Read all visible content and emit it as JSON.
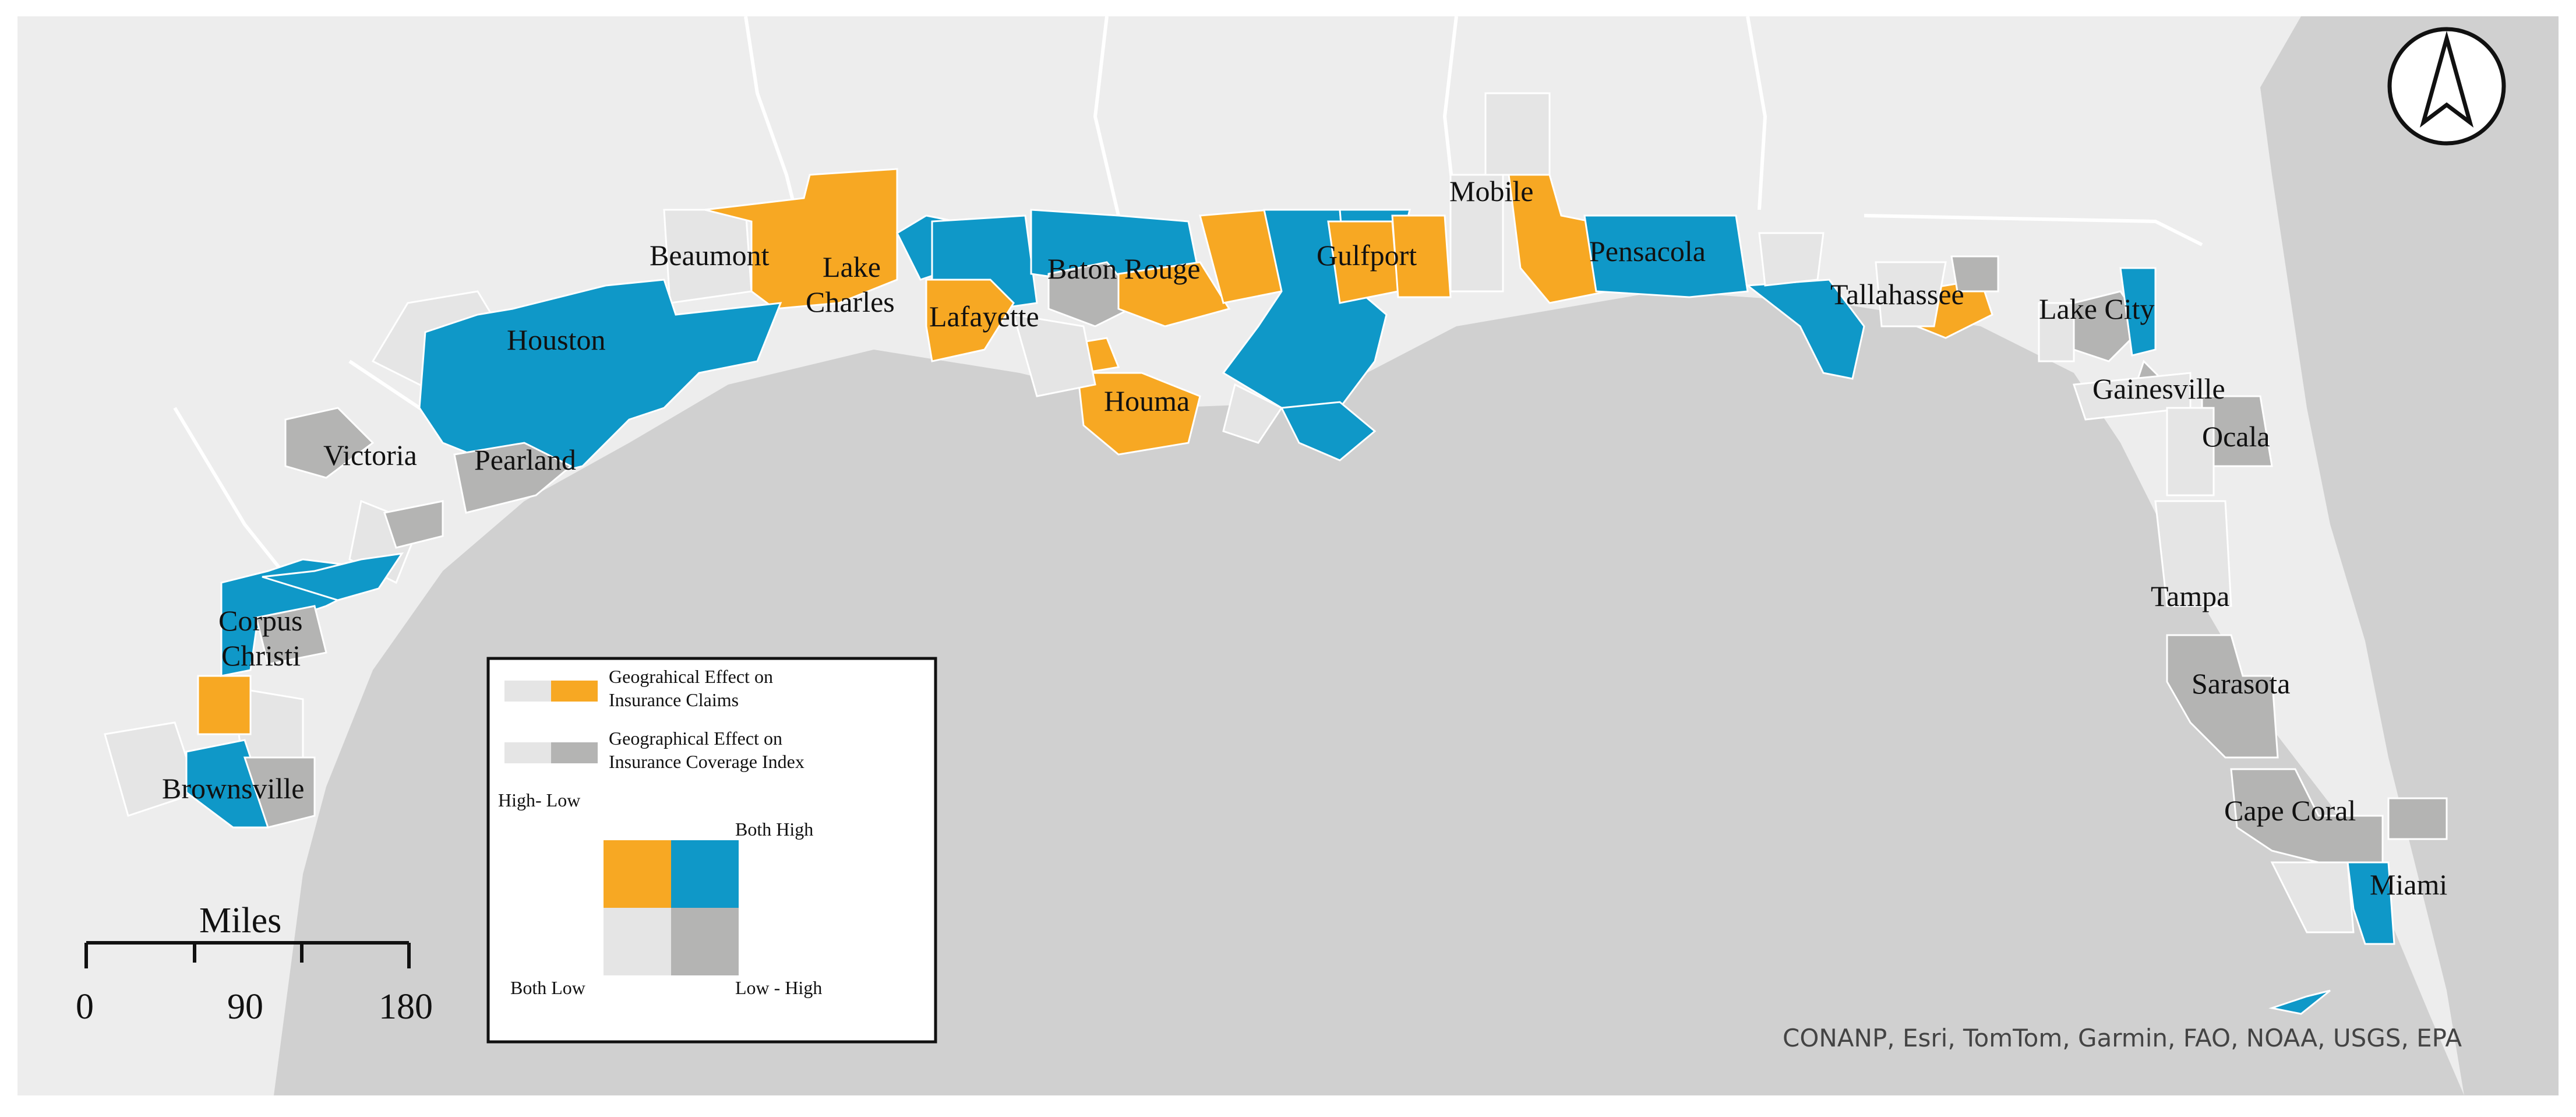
{
  "colors": {
    "background_land": "#ededed",
    "gulf_water": "#d0d0d0",
    "both_low": "#e5e5e5",
    "high_low_claims": "#f7a823",
    "low_high_coverage": "#b4b4b3",
    "both_high": "#0f98c8",
    "border": "#ffffff"
  },
  "cities": [
    {
      "id": "beaumont",
      "label": "Beaumont"
    },
    {
      "id": "lake-charles-1",
      "label": "Lake"
    },
    {
      "id": "lake-charles-2",
      "label": "Charles"
    },
    {
      "id": "houston",
      "label": "Houston"
    },
    {
      "id": "pearland",
      "label": "Pearland"
    },
    {
      "id": "victoria",
      "label": "Victoria"
    },
    {
      "id": "corpus-christi-1",
      "label": "Corpus"
    },
    {
      "id": "corpus-christi-2",
      "label": "Christi"
    },
    {
      "id": "brownsville",
      "label": "Brownsville"
    },
    {
      "id": "lafayette",
      "label": "Lafayette"
    },
    {
      "id": "baton-rouge",
      "label": "Baton Rouge"
    },
    {
      "id": "houma",
      "label": "Houma"
    },
    {
      "id": "gulfport",
      "label": "Gulfport"
    },
    {
      "id": "mobile",
      "label": "Mobile"
    },
    {
      "id": "pensacola",
      "label": "Pensacola"
    },
    {
      "id": "tallahassee",
      "label": "Tallahassee"
    },
    {
      "id": "lake-city",
      "label": "Lake City"
    },
    {
      "id": "gainesville",
      "label": "Gainesville"
    },
    {
      "id": "ocala",
      "label": "Ocala"
    },
    {
      "id": "tampa",
      "label": "Tampa"
    },
    {
      "id": "sarasota",
      "label": "Sarasota"
    },
    {
      "id": "cape-coral",
      "label": "Cape Coral"
    },
    {
      "id": "miami",
      "label": "Miami"
    }
  ],
  "legend": {
    "claims_label_1": "Geograhical Effect on",
    "claims_label_2": "Insurance Claims",
    "coverage_label_1": "Geographical Effect on",
    "coverage_label_2": "Insurance Coverage Index",
    "high_low": "High- Low",
    "both_high": "Both High",
    "both_low": "Both Low",
    "low_high": "Low - High"
  },
  "scale_bar": {
    "unit": "Miles",
    "ticks": [
      "0",
      "90",
      "180"
    ]
  },
  "attribution": "CONANP, Esri, TomTom, Garmin, FAO, NOAA, USGS, EPA",
  "north_arrow": "north-arrow-icon"
}
